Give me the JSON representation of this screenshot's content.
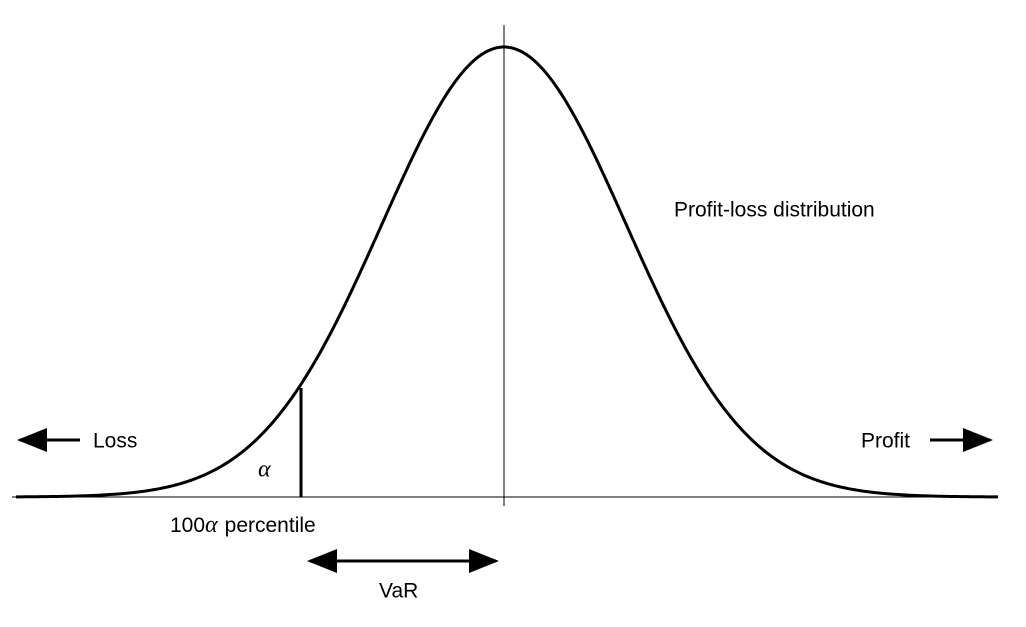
{
  "diagram": {
    "curve_label": "Profit-loss distribution",
    "left_label": "Loss",
    "right_label": "Profit",
    "tail_label": "α",
    "percentile_label": {
      "prefix": "100",
      "symbol": "α",
      "suffix": "percentile"
    },
    "range_label": "VaR"
  }
}
